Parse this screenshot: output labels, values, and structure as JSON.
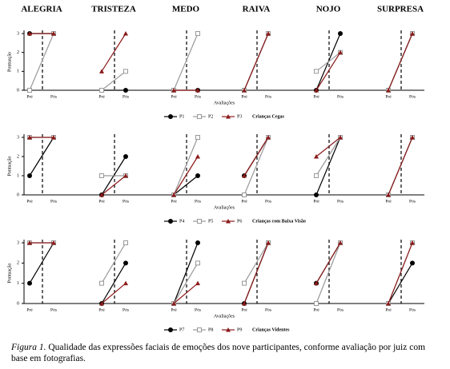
{
  "panel_titles": [
    "ALEGRIA",
    "TRISTEZA",
    "MEDO",
    "RAIVA",
    "NOJO",
    "SURPRESA"
  ],
  "chart_data": [
    {
      "type": "line",
      "x_label": "Avaliações",
      "y_label": "Pontuação",
      "categories": [
        "Pré",
        "Pós"
      ],
      "ylim": [
        0,
        3
      ],
      "yticks": [
        0,
        1,
        2,
        3
      ],
      "group_label": "Crianças Cegas",
      "legend": [
        {
          "name": "P1",
          "color": "#000000"
        },
        {
          "name": "P2",
          "color": "#999999"
        },
        {
          "name": "P3",
          "color": "#8b1a1a"
        }
      ],
      "panels": [
        {
          "series": [
            {
              "values": [
                3,
                3
              ]
            },
            {
              "values": [
                0,
                3
              ]
            },
            {
              "values": [
                3,
                3
              ]
            }
          ]
        },
        {
          "series": [
            {
              "values": [
                0,
                0
              ]
            },
            {
              "values": [
                0,
                1
              ]
            },
            {
              "values": [
                1,
                3
              ]
            }
          ]
        },
        {
          "series": [
            {
              "values": [
                0,
                0
              ]
            },
            {
              "values": [
                0,
                3
              ]
            },
            {
              "values": [
                0,
                0
              ]
            }
          ]
        },
        {
          "series": [
            {
              "values": [
                0,
                3
              ]
            },
            {
              "values": [
                0,
                3
              ]
            },
            {
              "values": [
                0,
                3
              ]
            }
          ]
        },
        {
          "series": [
            {
              "values": [
                0,
                3
              ]
            },
            {
              "values": [
                1,
                2
              ]
            },
            {
              "values": [
                0,
                2
              ]
            }
          ]
        },
        {
          "series": [
            {
              "values": [
                0,
                3
              ]
            },
            {
              "values": [
                0,
                3
              ]
            },
            {
              "values": [
                0,
                3
              ]
            }
          ]
        }
      ]
    },
    {
      "type": "line",
      "x_label": "Avaliações",
      "y_label": "Pontuação",
      "categories": [
        "Pré",
        "Pós"
      ],
      "ylim": [
        0,
        3
      ],
      "yticks": [
        0,
        1,
        2,
        3
      ],
      "group_label": "Crianças com Baixa Visão",
      "legend": [
        {
          "name": "P4",
          "color": "#000000"
        },
        {
          "name": "P5",
          "color": "#999999"
        },
        {
          "name": "P6",
          "color": "#8b1a1a"
        }
      ],
      "panels": [
        {
          "series": [
            {
              "values": [
                1,
                3
              ]
            },
            {
              "values": [
                3,
                3
              ]
            },
            {
              "values": [
                3,
                3
              ]
            }
          ]
        },
        {
          "series": [
            {
              "values": [
                0,
                2
              ]
            },
            {
              "values": [
                1,
                1
              ]
            },
            {
              "values": [
                0,
                1
              ]
            }
          ]
        },
        {
          "series": [
            {
              "values": [
                0,
                1
              ]
            },
            {
              "values": [
                0,
                3
              ]
            },
            {
              "values": [
                0,
                2
              ]
            }
          ]
        },
        {
          "series": [
            {
              "values": [
                1,
                3
              ]
            },
            {
              "values": [
                0,
                3
              ]
            },
            {
              "values": [
                1,
                3
              ]
            }
          ]
        },
        {
          "series": [
            {
              "values": [
                0,
                3
              ]
            },
            {
              "values": [
                1,
                3
              ]
            },
            {
              "values": [
                2,
                3
              ]
            }
          ]
        },
        {
          "series": [
            {
              "values": [
                0,
                3
              ]
            },
            {
              "values": [
                0,
                3
              ]
            },
            {
              "values": [
                0,
                3
              ]
            }
          ]
        }
      ]
    },
    {
      "type": "line",
      "x_label": "Avaliações",
      "y_label": "Pontuação",
      "categories": [
        "Pré",
        "Pós"
      ],
      "ylim": [
        0,
        3
      ],
      "yticks": [
        0,
        1,
        2,
        3
      ],
      "group_label": "Crianças Videntes",
      "legend": [
        {
          "name": "P7",
          "color": "#000000"
        },
        {
          "name": "P8",
          "color": "#999999"
        },
        {
          "name": "P9",
          "color": "#8b1a1a"
        }
      ],
      "panels": [
        {
          "series": [
            {
              "values": [
                1,
                3
              ]
            },
            {
              "values": [
                3,
                3
              ]
            },
            {
              "values": [
                3,
                3
              ]
            }
          ]
        },
        {
          "series": [
            {
              "values": [
                0,
                2
              ]
            },
            {
              "values": [
                1,
                3
              ]
            },
            {
              "values": [
                0,
                1
              ]
            }
          ]
        },
        {
          "series": [
            {
              "values": [
                0,
                3
              ]
            },
            {
              "values": [
                0,
                2
              ]
            },
            {
              "values": [
                0,
                1
              ]
            }
          ]
        },
        {
          "series": [
            {
              "values": [
                0,
                3
              ]
            },
            {
              "values": [
                1,
                3
              ]
            },
            {
              "values": [
                0,
                3
              ]
            }
          ]
        },
        {
          "series": [
            {
              "values": [
                1,
                3
              ]
            },
            {
              "values": [
                0,
                3
              ]
            },
            {
              "values": [
                1,
                3
              ]
            }
          ]
        },
        {
          "series": [
            {
              "values": [
                0,
                2
              ]
            },
            {
              "values": [
                0,
                3
              ]
            },
            {
              "values": [
                0,
                3
              ]
            }
          ]
        }
      ]
    }
  ],
  "caption": {
    "label": "Figura 1.",
    "text": "Qualidade das expressões faciais de emoções dos nove participantes, conforme avaliação por juiz com base em fotografias."
  }
}
